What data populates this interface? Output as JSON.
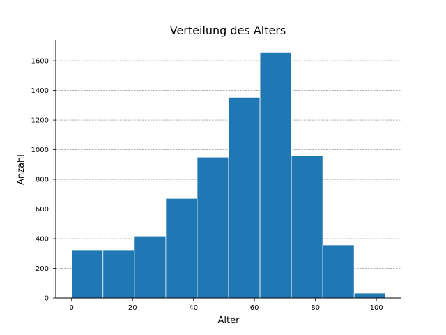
{
  "chart_data": {
    "type": "bar",
    "title": "Verteilung des Alters",
    "xlabel": "Alter",
    "ylabel": "Anzahl",
    "bins": [
      {
        "start": 0.0,
        "end": 10.3,
        "value": 325
      },
      {
        "start": 10.3,
        "end": 20.6,
        "value": 325
      },
      {
        "start": 20.6,
        "end": 30.9,
        "value": 418
      },
      {
        "start": 30.9,
        "end": 41.2,
        "value": 672
      },
      {
        "start": 41.2,
        "end": 51.5,
        "value": 950
      },
      {
        "start": 51.5,
        "end": 61.8,
        "value": 1354
      },
      {
        "start": 61.8,
        "end": 72.1,
        "value": 1655
      },
      {
        "start": 72.1,
        "end": 82.4,
        "value": 960
      },
      {
        "start": 82.4,
        "end": 92.7,
        "value": 358
      },
      {
        "start": 92.7,
        "end": 103.0,
        "value": 33
      }
    ],
    "xlim": [
      -5.2,
      108.2
    ],
    "ylim": [
      0,
      1737
    ],
    "xticks": [
      0,
      20,
      40,
      60,
      80,
      100
    ],
    "yticks": [
      0,
      200,
      400,
      600,
      800,
      1000,
      1200,
      1400,
      1600
    ],
    "grid": "y-dashed",
    "bar_color": "#1f77b4",
    "bar_edge_color": "#ffffff",
    "grid_color": "#808080"
  }
}
